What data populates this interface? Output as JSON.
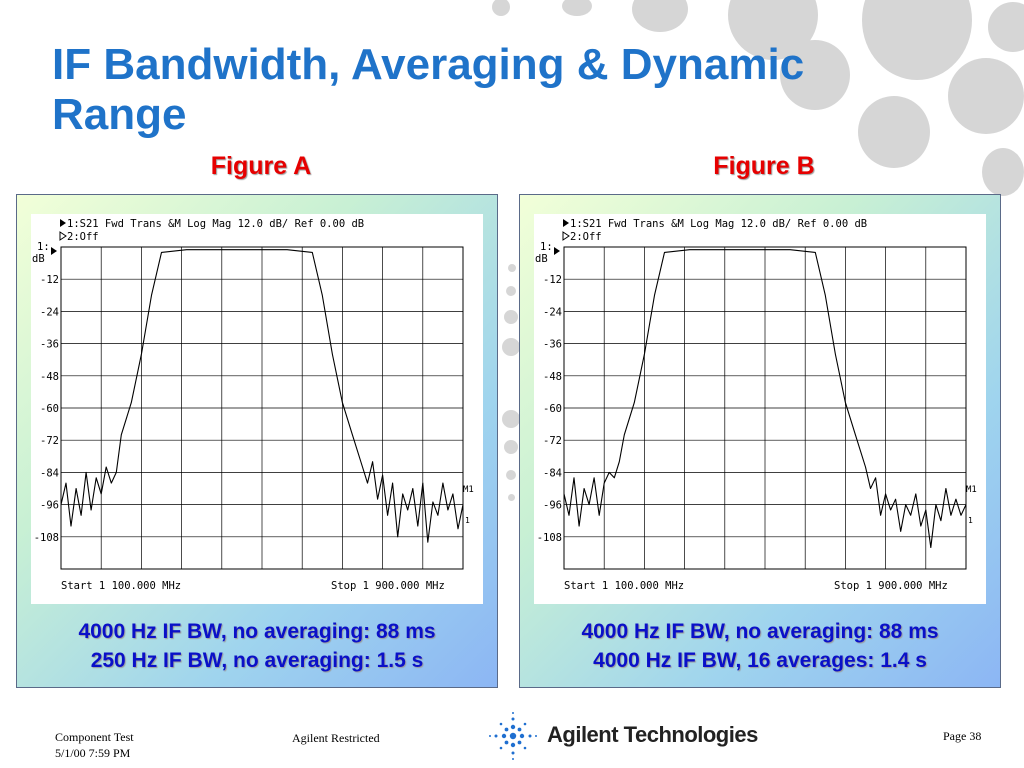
{
  "slide": {
    "title": "IF Bandwidth, Averaging & Dynamic Range"
  },
  "figures": [
    {
      "label": "Figure A",
      "header_line1": "1:S21 Fwd Trans &M Log Mag  12.0 dB/ Ref   0.00 dB",
      "header_line2": "2:Off",
      "y_unit_line1": "1:",
      "y_unit_line2": "dB",
      "y_ticks": [
        "-12",
        "-24",
        "-36",
        "-48",
        "-60",
        "-72",
        "-84",
        "-96",
        "-108"
      ],
      "start_label": "Start 1 100.000 MHz",
      "stop_label": "Stop 1 900.000 MHz",
      "marker_label": "M1",
      "marker_sub": "1",
      "caption_line1": "4000 Hz IF BW, no averaging: 88 ms",
      "caption_line2": "250 Hz IF BW, no averaging: 1.5 s"
    },
    {
      "label": "Figure B",
      "header_line1": "1:S21 Fwd Trans &M Log Mag  12.0 dB/ Ref   0.00 dB",
      "header_line2": "2:Off",
      "y_unit_line1": "1:",
      "y_unit_line2": "dB",
      "y_ticks": [
        "-12",
        "-24",
        "-36",
        "-48",
        "-60",
        "-72",
        "-84",
        "-96",
        "-108"
      ],
      "start_label": "Start 1 100.000 MHz",
      "stop_label": "Stop 1 900.000 MHz",
      "marker_label": "M1",
      "marker_sub": "1",
      "caption_line1": "4000 Hz IF BW, no averaging: 88 ms",
      "caption_line2": "4000 Hz IF BW, 16 averages: 1.4 s"
    }
  ],
  "footer": {
    "doc_name": "Component Test",
    "date_time": "5/1/00 7:59 PM",
    "classification": "Agilent Restricted",
    "company": "Agilent Technologies",
    "page": "Page 38"
  },
  "colors": {
    "title": "#1f73c9",
    "figure_label": "#e60000",
    "caption": "#0a10c8",
    "trace": "#000000"
  },
  "chart_data": [
    {
      "type": "line",
      "title": "1:S21 Fwd Trans &M Log Mag  12.0 dB/ Ref   0.00 dB",
      "xlabel": "",
      "ylabel": "dB",
      "xlim": [
        100,
        900
      ],
      "ylim": [
        -120,
        0
      ],
      "grid": true,
      "series": [
        {
          "name": "",
          "x": [
            100,
            110,
            120,
            130,
            140,
            150,
            160,
            170,
            180,
            190,
            200,
            210,
            220,
            240,
            260,
            280,
            300,
            350,
            400,
            450,
            500,
            550,
            600,
            620,
            640,
            660,
            680,
            700,
            710,
            720,
            730,
            740,
            750,
            760,
            770,
            780,
            790,
            800,
            810,
            820,
            830,
            840,
            850,
            860,
            870,
            880,
            890,
            900
          ],
          "y": [
            -96,
            -88,
            -104,
            -90,
            -100,
            -84,
            -98,
            -86,
            -92,
            -82,
            -88,
            -84,
            -70,
            -58,
            -40,
            -18,
            -2,
            -1,
            -1,
            -1,
            -1,
            -1,
            -2,
            -18,
            -40,
            -58,
            -70,
            -82,
            -88,
            -80,
            -94,
            -85,
            -100,
            -88,
            -108,
            -92,
            -98,
            -90,
            -104,
            -88,
            -110,
            -95,
            -100,
            -88,
            -98,
            -92,
            -105,
            -96
          ]
        }
      ]
    },
    {
      "type": "line",
      "title": "1:S21 Fwd Trans &M Log Mag  12.0 dB/ Ref   0.00 dB",
      "xlabel": "",
      "ylabel": "dB",
      "xlim": [
        100,
        900
      ],
      "ylim": [
        -120,
        0
      ],
      "grid": true,
      "series": [
        {
          "name": "",
          "x": [
            100,
            110,
            120,
            130,
            140,
            150,
            160,
            170,
            180,
            190,
            200,
            210,
            220,
            240,
            260,
            280,
            300,
            350,
            400,
            450,
            500,
            550,
            600,
            620,
            640,
            660,
            680,
            700,
            710,
            720,
            730,
            740,
            750,
            760,
            770,
            780,
            790,
            800,
            810,
            820,
            830,
            840,
            850,
            860,
            870,
            880,
            890,
            900
          ],
          "y": [
            -92,
            -100,
            -86,
            -104,
            -90,
            -96,
            -86,
            -100,
            -88,
            -84,
            -86,
            -80,
            -70,
            -58,
            -40,
            -18,
            -2,
            -1,
            -1,
            -1,
            -1,
            -1,
            -2,
            -18,
            -40,
            -58,
            -70,
            -82,
            -90,
            -86,
            -100,
            -92,
            -98,
            -94,
            -106,
            -96,
            -100,
            -92,
            -104,
            -98,
            -112,
            -96,
            -102,
            -90,
            -100,
            -94,
            -100,
            -96
          ]
        }
      ]
    }
  ]
}
